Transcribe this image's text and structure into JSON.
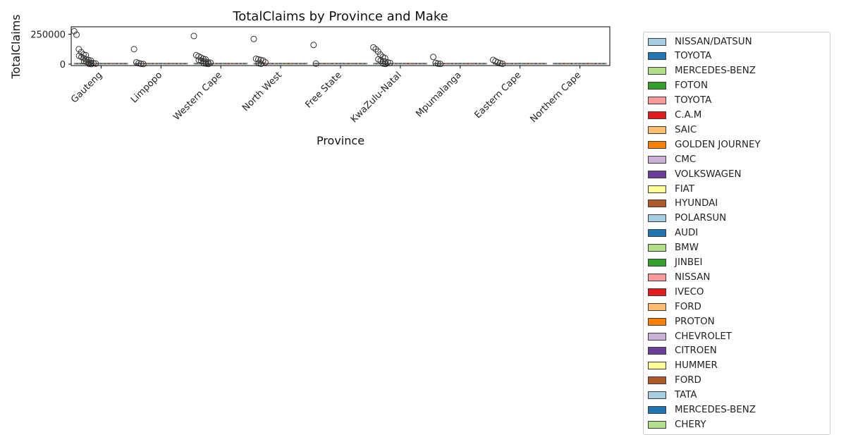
{
  "chart_data": {
    "type": "box",
    "title": "TotalClaims by Province and Make",
    "xlabel": "Province",
    "ylabel": "TotalClaims",
    "ylim": [
      0,
      300000
    ],
    "yticks": [
      0,
      250000
    ],
    "ytick_labels": [
      "0",
      "250000"
    ],
    "categories": [
      "Gauteng",
      "Limpopo",
      "Western Cape",
      "North West",
      "Free State",
      "KwaZulu-Natal",
      "Mpumalanga",
      "Eastern Cape",
      "Northern Cape"
    ],
    "grid": false,
    "legend_position": "outside right",
    "legend": [
      {
        "name": "NISSAN/DATSUN",
        "color": "#a6cee3"
      },
      {
        "name": "TOYOTA",
        "color": "#1f78b4"
      },
      {
        "name": "MERCEDES-BENZ",
        "color": "#b2df8a"
      },
      {
        "name": "FOTON",
        "color": "#33a02c"
      },
      {
        "name": "TOYOTA",
        "color": "#fb9a99"
      },
      {
        "name": "C.A.M",
        "color": "#e31a1c"
      },
      {
        "name": "SAIC",
        "color": "#fdbf6f"
      },
      {
        "name": "GOLDEN JOURNEY",
        "color": "#ff7f00"
      },
      {
        "name": "CMC",
        "color": "#cab2d6"
      },
      {
        "name": "VOLKSWAGEN",
        "color": "#6a3d9a"
      },
      {
        "name": "FIAT",
        "color": "#ffff99"
      },
      {
        "name": "HYUNDAI",
        "color": "#b15928"
      },
      {
        "name": "POLARSUN",
        "color": "#a6cee3"
      },
      {
        "name": "AUDI",
        "color": "#1f78b4"
      },
      {
        "name": "BMW",
        "color": "#b2df8a"
      },
      {
        "name": "JINBEI",
        "color": "#33a02c"
      },
      {
        "name": "NISSAN",
        "color": "#fb9a99"
      },
      {
        "name": "IVECO",
        "color": "#e31a1c"
      },
      {
        "name": "FORD",
        "color": "#fdbf6f"
      },
      {
        "name": "PROTON",
        "color": "#ff7f00"
      },
      {
        "name": "CHEVROLET",
        "color": "#cab2d6"
      },
      {
        "name": "CITROEN",
        "color": "#6a3d9a"
      },
      {
        "name": "HUMMER",
        "color": "#ffff99"
      },
      {
        "name": "FORD",
        "color": "#b15928"
      },
      {
        "name": "TATA",
        "color": "#a6cee3"
      },
      {
        "name": "MERCEDES-BENZ",
        "color": "#1f78b4"
      },
      {
        "name": "CHERY",
        "color": "#b2df8a"
      }
    ],
    "outliers": [
      {
        "province": "Gauteng",
        "values": [
          275000,
          245000,
          125000,
          100000,
          80000,
          75000,
          70000,
          60000,
          50000,
          40000,
          35000,
          30000,
          25000,
          20000,
          15000,
          10000,
          8000,
          5000,
          3000,
          1000
        ]
      },
      {
        "province": "Limpopo",
        "values": [
          125000,
          15000,
          8000,
          3000,
          1000
        ]
      },
      {
        "province": "Western Cape",
        "values": [
          235000,
          75000,
          65000,
          55000,
          45000,
          40000,
          35000,
          30000,
          25000,
          20000,
          15000,
          12000,
          8000,
          5000,
          2000
        ]
      },
      {
        "province": "North West",
        "values": [
          210000,
          45000,
          40000,
          35000,
          30000,
          15000,
          8000,
          3000
        ]
      },
      {
        "province": "Free State",
        "values": [
          160000,
          5000
        ]
      },
      {
        "province": "KwaZulu-Natal",
        "values": [
          140000,
          125000,
          105000,
          80000,
          60000,
          50000,
          40000,
          30000,
          25000,
          20000,
          15000,
          10000,
          5000,
          2000
        ]
      },
      {
        "province": "Mpumalanga",
        "values": [
          60000,
          10000,
          5000,
          2000
        ]
      },
      {
        "province": "Eastern Cape",
        "values": [
          35000,
          25000,
          15000,
          8000,
          3000
        ]
      },
      {
        "province": "Northern Cape",
        "values": []
      }
    ]
  }
}
